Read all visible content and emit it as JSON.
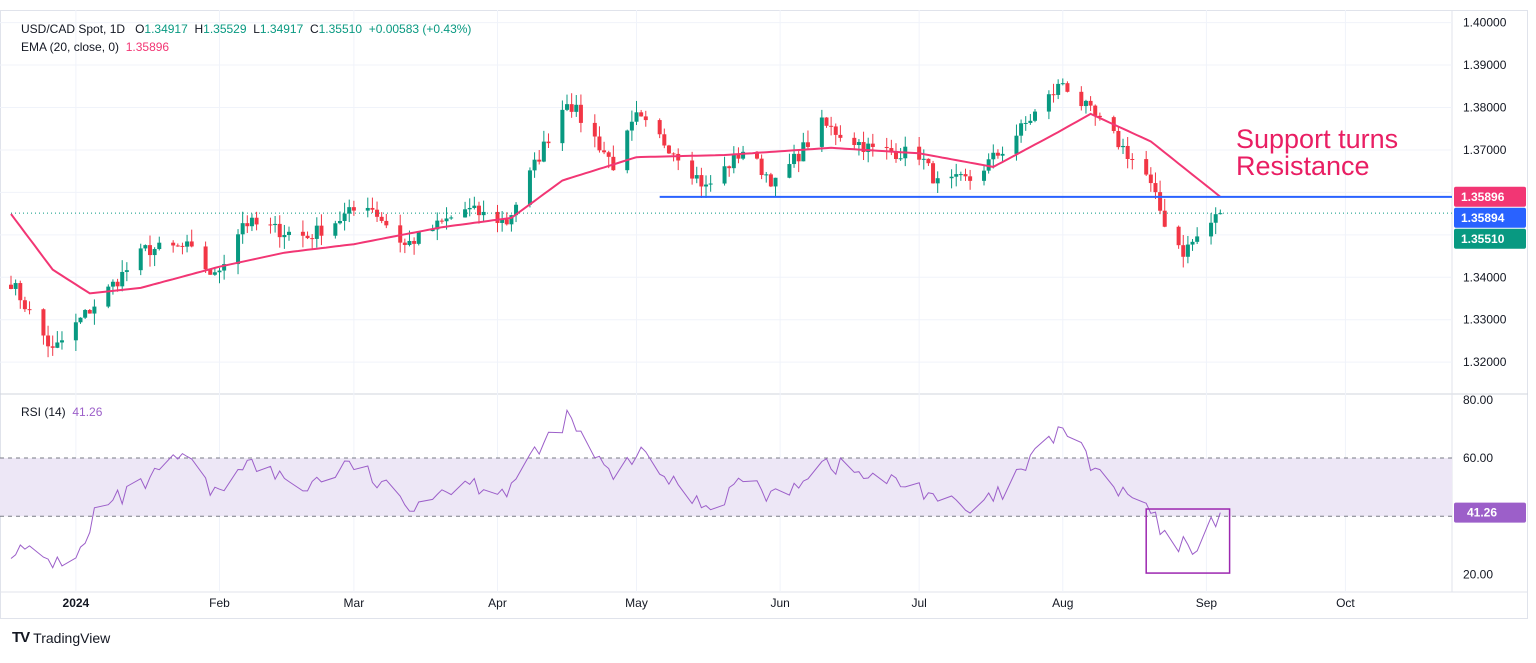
{
  "colors": {
    "up": "#089981",
    "down": "#f23645",
    "ema": "#f23674",
    "support_line": "#2962ff",
    "rsi": "#9c5fc9",
    "rsi_band": "#ede7f6",
    "rsi_box": "#9c27b0",
    "annotation": "#e91e63",
    "grid": "#f0f3fa",
    "axis_text": "#131722"
  },
  "header": {
    "symbol": "USD/CAD Spot, 1D",
    "open_label": "O",
    "open": "1.34917",
    "high_label": "H",
    "high": "1.35529",
    "low_label": "L",
    "low": "1.34917",
    "close_label": "C",
    "close": "1.35510",
    "change": "+0.00583 (+0.43%)",
    "ema_label": "EMA (20, close, 0)",
    "ema_value": "1.35896",
    "rsi_label": "RSI (14)",
    "rsi_value": "41.26"
  },
  "annotation": {
    "line1": "Support turns",
    "line2": "Resistance"
  },
  "brand": {
    "logo": "TV",
    "name": "TradingView"
  },
  "chart_data": {
    "type": "candlestick",
    "title": "USD/CAD Spot, 1D",
    "x_range": [
      "2023-12-18",
      "2024-10-24"
    ],
    "xtick_labels": [
      {
        "date": "2024-01-01",
        "label": "2024"
      },
      {
        "date": "2024-02-01",
        "label": "Feb"
      },
      {
        "date": "2024-03-01",
        "label": "Mar"
      },
      {
        "date": "2024-04-01",
        "label": "Apr"
      },
      {
        "date": "2024-05-01",
        "label": "May"
      },
      {
        "date": "2024-06-01",
        "label": "Jun"
      },
      {
        "date": "2024-07-01",
        "label": "Jul"
      },
      {
        "date": "2024-08-01",
        "label": "Aug"
      },
      {
        "date": "2024-09-01",
        "label": "Sep"
      },
      {
        "date": "2024-10-01",
        "label": "Oct"
      }
    ],
    "price_axis": {
      "range": [
        1.3125,
        1.4025
      ],
      "ticks": [
        "1.32000",
        "1.33000",
        "1.34000",
        "1.35000",
        "1.36000",
        "1.37000",
        "1.38000",
        "1.39000",
        "1.40000"
      ]
    },
    "price_badges": [
      {
        "label": "1.35896",
        "value": 1.35896,
        "color": "#f23674"
      },
      {
        "label": "1.35894",
        "value": 1.35894,
        "color": "#2962ff"
      },
      {
        "label": "1.35510",
        "value": 1.3551,
        "color": "#089981"
      }
    ],
    "last_price": 1.3551,
    "support_line": {
      "value": 1.35894,
      "from": "2024-05-06",
      "to": "2024-10-24"
    },
    "ema_anchors": [
      {
        "date": "2023-12-18",
        "value": 1.3549
      },
      {
        "date": "2023-12-27",
        "value": 1.3418
      },
      {
        "date": "2024-01-04",
        "value": 1.3362
      },
      {
        "date": "2024-01-15",
        "value": 1.3375
      },
      {
        "date": "2024-02-01",
        "value": 1.3425
      },
      {
        "date": "2024-02-15",
        "value": 1.3458
      },
      {
        "date": "2024-03-01",
        "value": 1.3478
      },
      {
        "date": "2024-03-20",
        "value": 1.3518
      },
      {
        "date": "2024-04-04",
        "value": 1.354
      },
      {
        "date": "2024-04-15",
        "value": 1.3628
      },
      {
        "date": "2024-05-01",
        "value": 1.3683
      },
      {
        "date": "2024-05-20",
        "value": 1.3688
      },
      {
        "date": "2024-06-12",
        "value": 1.3705
      },
      {
        "date": "2024-07-01",
        "value": 1.3692
      },
      {
        "date": "2024-07-17",
        "value": 1.366
      },
      {
        "date": "2024-07-31",
        "value": 1.3742
      },
      {
        "date": "2024-08-07",
        "value": 1.3785
      },
      {
        "date": "2024-08-20",
        "value": 1.372
      },
      {
        "date": "2024-09-04",
        "value": 1.35896
      }
    ],
    "price_anchors": [
      {
        "date": "2023-12-18",
        "value": 1.339
      },
      {
        "date": "2023-12-27",
        "value": 1.3225
      },
      {
        "date": "2024-01-02",
        "value": 1.33
      },
      {
        "date": "2024-01-16",
        "value": 1.3465
      },
      {
        "date": "2024-01-25",
        "value": 1.347
      },
      {
        "date": "2024-01-31",
        "value": 1.34
      },
      {
        "date": "2024-02-06",
        "value": 1.353
      },
      {
        "date": "2024-02-20",
        "value": 1.3495
      },
      {
        "date": "2024-03-04",
        "value": 1.3575
      },
      {
        "date": "2024-03-12",
        "value": 1.3475
      },
      {
        "date": "2024-03-25",
        "value": 1.356
      },
      {
        "date": "2024-04-03",
        "value": 1.353
      },
      {
        "date": "2024-04-16",
        "value": 1.382
      },
      {
        "date": "2024-04-26",
        "value": 1.3665
      },
      {
        "date": "2024-05-01",
        "value": 1.3775
      },
      {
        "date": "2024-05-10",
        "value": 1.369
      },
      {
        "date": "2024-05-16",
        "value": 1.361
      },
      {
        "date": "2024-05-24",
        "value": 1.37
      },
      {
        "date": "2024-05-31",
        "value": 1.362
      },
      {
        "date": "2024-06-10",
        "value": 1.376
      },
      {
        "date": "2024-06-21",
        "value": 1.37
      },
      {
        "date": "2024-07-01",
        "value": 1.369
      },
      {
        "date": "2024-07-05",
        "value": 1.362
      },
      {
        "date": "2024-07-12",
        "value": 1.363
      },
      {
        "date": "2024-07-19",
        "value": 1.37
      },
      {
        "date": "2024-08-01",
        "value": 1.386
      },
      {
        "date": "2024-08-05",
        "value": 1.381
      },
      {
        "date": "2024-08-12",
        "value": 1.373
      },
      {
        "date": "2024-08-19",
        "value": 1.364
      },
      {
        "date": "2024-08-23",
        "value": 1.353
      },
      {
        "date": "2024-08-27",
        "value": 1.346
      },
      {
        "date": "2024-09-04",
        "value": 1.3551
      }
    ],
    "rsi_axis": {
      "range": [
        14,
        82
      ],
      "ticks": [
        "20.00",
        "60.00",
        "80.00"
      ],
      "band": [
        40,
        60
      ]
    },
    "rsi_anchors": [
      {
        "date": "2023-12-18",
        "value": 29
      },
      {
        "date": "2023-12-28",
        "value": 24
      },
      {
        "date": "2024-01-03",
        "value": 29
      },
      {
        "date": "2024-01-05",
        "value": 41
      },
      {
        "date": "2024-01-17",
        "value": 52
      },
      {
        "date": "2024-01-24",
        "value": 61
      },
      {
        "date": "2024-01-31",
        "value": 47
      },
      {
        "date": "2024-02-06",
        "value": 59
      },
      {
        "date": "2024-02-19",
        "value": 50
      },
      {
        "date": "2024-03-01",
        "value": 58
      },
      {
        "date": "2024-03-12",
        "value": 44
      },
      {
        "date": "2024-03-25",
        "value": 52
      },
      {
        "date": "2024-04-03",
        "value": 49
      },
      {
        "date": "2024-04-16",
        "value": 74
      },
      {
        "date": "2024-04-26",
        "value": 52
      },
      {
        "date": "2024-05-01",
        "value": 62
      },
      {
        "date": "2024-05-10",
        "value": 50
      },
      {
        "date": "2024-05-17",
        "value": 43
      },
      {
        "date": "2024-05-24",
        "value": 53
      },
      {
        "date": "2024-05-31",
        "value": 46
      },
      {
        "date": "2024-06-10",
        "value": 59
      },
      {
        "date": "2024-06-21",
        "value": 53
      },
      {
        "date": "2024-07-01",
        "value": 50
      },
      {
        "date": "2024-07-12",
        "value": 41
      },
      {
        "date": "2024-07-19",
        "value": 48
      },
      {
        "date": "2024-08-01",
        "value": 71
      },
      {
        "date": "2024-08-06",
        "value": 60
      },
      {
        "date": "2024-08-12",
        "value": 49
      },
      {
        "date": "2024-08-19",
        "value": 44
      },
      {
        "date": "2024-08-23",
        "value": 32
      },
      {
        "date": "2024-08-29",
        "value": 29
      },
      {
        "date": "2024-09-04",
        "value": 41.26
      }
    ],
    "rsi_box": {
      "from": "2024-08-19",
      "to": "2024-09-06",
      "range": [
        20.5,
        42.5
      ]
    }
  }
}
